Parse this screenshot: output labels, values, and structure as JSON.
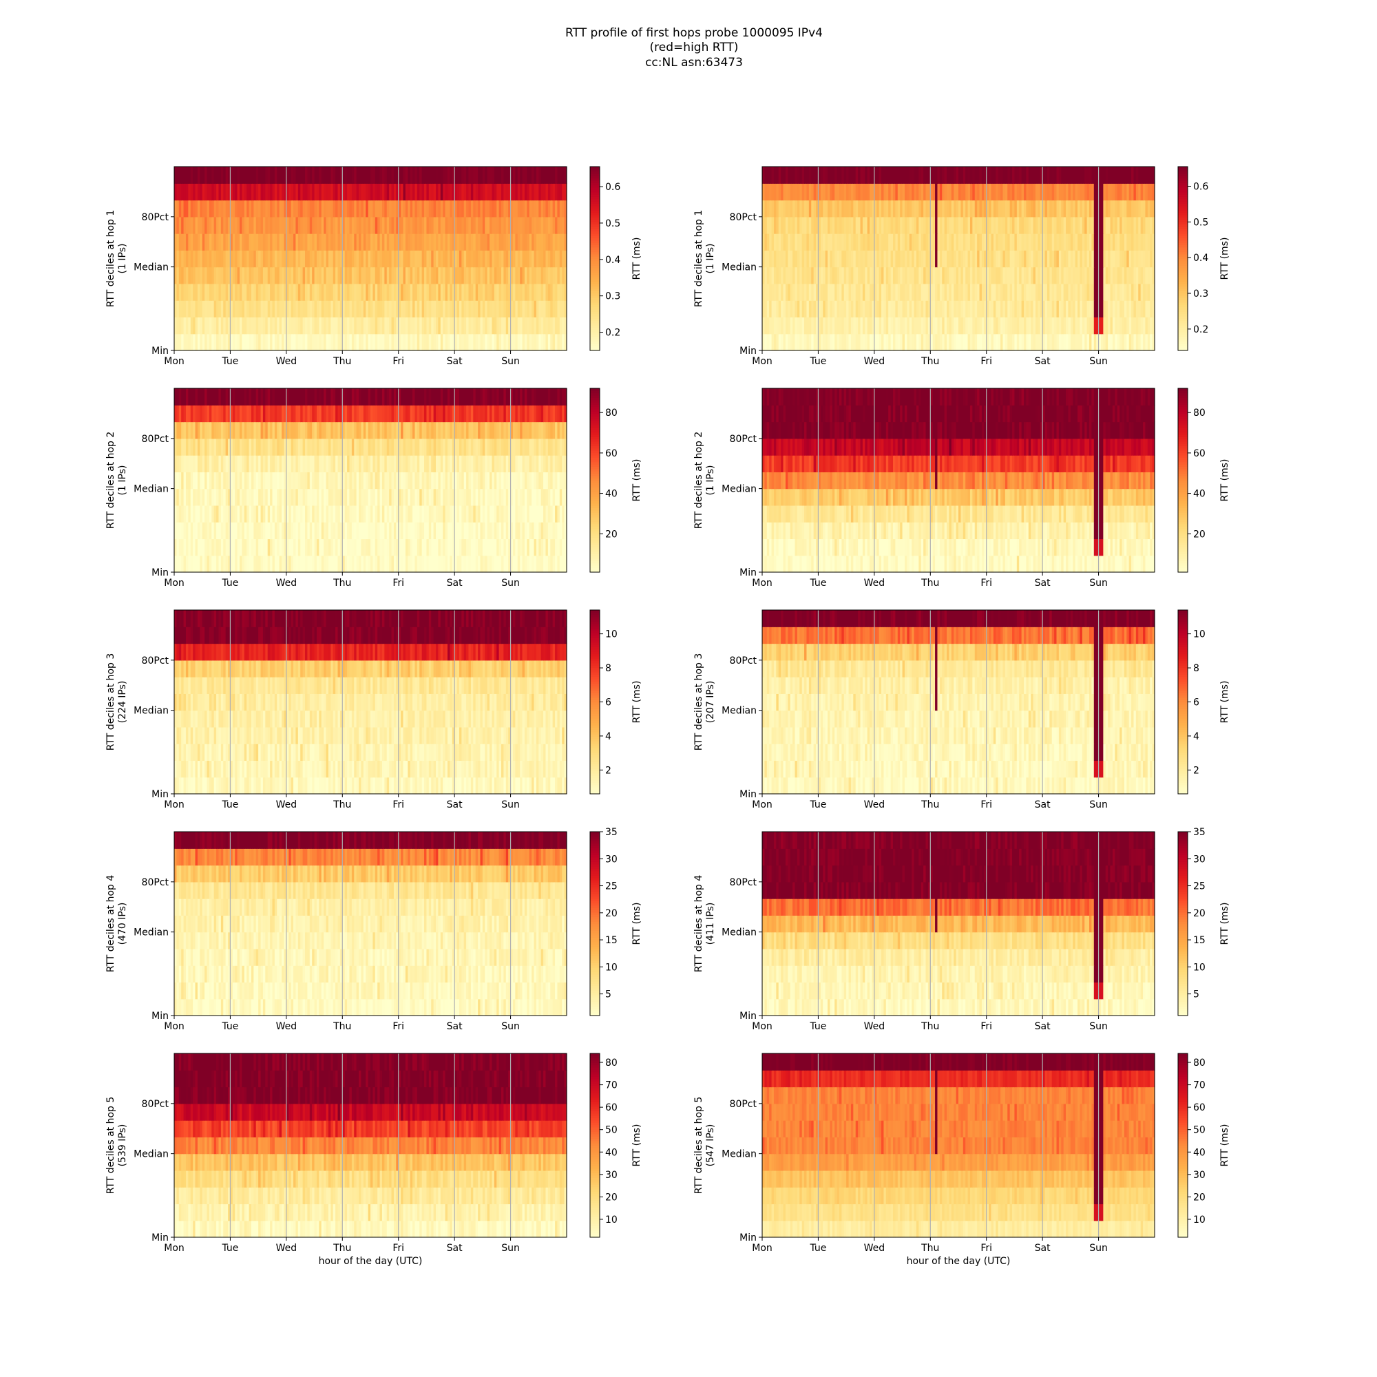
{
  "title_lines": [
    "RTT profile of first hops probe 1000095 IPv4",
    "(red=high RTT)",
    "cc:NL asn:63473"
  ],
  "colormap": {
    "name": "YlOrRd",
    "stops": [
      "#ffffcc",
      "#ffeda0",
      "#fed976",
      "#feb24c",
      "#fd8d3c",
      "#fc4e2a",
      "#e31a1c",
      "#bd0026",
      "#800026"
    ]
  },
  "chart_data": [
    {
      "type": "heatmap",
      "column": "left",
      "hop": 1,
      "ylabel_lines": [
        "RTT deciles at hop 1",
        "(1 IPs)"
      ],
      "colorbar_label": "RTT (ms)",
      "vmin": 0.15,
      "vmax": 0.655,
      "colorbar_ticks": [
        0.2,
        0.3,
        0.4,
        0.5,
        0.6
      ],
      "colorbar_tick_labels": [
        "0.2",
        "0.3",
        "0.4",
        "0.5",
        "0.6"
      ],
      "x_tick_labels": [
        "Mon",
        "Tue",
        "Wed",
        "Thu",
        "Fri",
        "Sat",
        "Sun"
      ],
      "y_tick_labels": [
        "Min",
        "Median",
        "80Pct"
      ],
      "xlabel": "",
      "decile_values": [
        0.17,
        0.21,
        0.25,
        0.28,
        0.31,
        0.33,
        0.36,
        0.38,
        0.41,
        0.56,
        0.66
      ],
      "noise": 0.05,
      "anomaly": null
    },
    {
      "type": "heatmap",
      "column": "right",
      "hop": 1,
      "ylabel_lines": [
        "RTT deciles at hop 1",
        "(1 IPs)"
      ],
      "colorbar_label": "RTT (ms)",
      "vmin": 0.14,
      "vmax": 0.655,
      "colorbar_ticks": [
        0.2,
        0.3,
        0.4,
        0.5,
        0.6
      ],
      "colorbar_tick_labels": [
        "0.2",
        "0.3",
        "0.4",
        "0.5",
        "0.6"
      ],
      "x_tick_labels": [
        "Mon",
        "Tue",
        "Wed",
        "Thu",
        "Fri",
        "Sat",
        "Sun"
      ],
      "y_tick_labels": [
        "Min",
        "Median",
        "80Pct"
      ],
      "xlabel": "",
      "decile_values": [
        0.16,
        0.19,
        0.21,
        0.22,
        0.23,
        0.24,
        0.25,
        0.26,
        0.3,
        0.4,
        0.66
      ],
      "noise": 0.05,
      "anomaly": "dip"
    },
    {
      "type": "heatmap",
      "column": "left",
      "hop": 2,
      "ylabel_lines": [
        "RTT deciles at hop 2",
        "(1 IPs)"
      ],
      "colorbar_label": "RTT (ms)",
      "vmin": 1,
      "vmax": 92,
      "colorbar_ticks": [
        20,
        40,
        60,
        80
      ],
      "colorbar_tick_labels": [
        "20",
        "40",
        "60",
        "80"
      ],
      "x_tick_labels": [
        "Mon",
        "Tue",
        "Wed",
        "Thu",
        "Fri",
        "Sat",
        "Sun"
      ],
      "y_tick_labels": [
        "Min",
        "Median",
        "80Pct"
      ],
      "xlabel": "",
      "decile_values": [
        2,
        3,
        3,
        4,
        5,
        6,
        10,
        18,
        30,
        62,
        92
      ],
      "noise": 0.06,
      "anomaly": null
    },
    {
      "type": "heatmap",
      "column": "right",
      "hop": 2,
      "ylabel_lines": [
        "RTT deciles at hop 2",
        "(1 IPs)"
      ],
      "colorbar_label": "RTT (ms)",
      "vmin": 1,
      "vmax": 92,
      "colorbar_ticks": [
        20,
        40,
        60,
        80
      ],
      "colorbar_tick_labels": [
        "20",
        "40",
        "60",
        "80"
      ],
      "x_tick_labels": [
        "Mon",
        "Tue",
        "Wed",
        "Thu",
        "Fri",
        "Sat",
        "Sun"
      ],
      "y_tick_labels": [
        "Min",
        "Median",
        "80Pct"
      ],
      "xlabel": "",
      "decile_values": [
        3,
        4,
        8,
        15,
        28,
        45,
        62,
        78,
        92,
        92,
        92
      ],
      "noise": 0.06,
      "anomaly": "dip"
    },
    {
      "type": "heatmap",
      "column": "left",
      "hop": 3,
      "ylabel_lines": [
        "RTT deciles at hop 3",
        "(224 IPs)"
      ],
      "colorbar_label": "RTT (ms)",
      "vmin": 0.6,
      "vmax": 11.4,
      "colorbar_ticks": [
        2,
        4,
        6,
        8,
        10
      ],
      "colorbar_tick_labels": [
        "2",
        "4",
        "6",
        "8",
        "10"
      ],
      "x_tick_labels": [
        "Mon",
        "Tue",
        "Wed",
        "Thu",
        "Fri",
        "Sat",
        "Sun"
      ],
      "y_tick_labels": [
        "Min",
        "Median",
        "80Pct"
      ],
      "xlabel": "",
      "decile_values": [
        1.1,
        1.3,
        1.4,
        1.6,
        1.7,
        1.9,
        2.2,
        3.5,
        8.5,
        11.4,
        11.4
      ],
      "noise": 0.06,
      "anomaly": null
    },
    {
      "type": "heatmap",
      "column": "right",
      "hop": 3,
      "ylabel_lines": [
        "RTT deciles at hop 3",
        "(207 IPs)"
      ],
      "colorbar_label": "RTT (ms)",
      "vmin": 0.6,
      "vmax": 11.4,
      "colorbar_ticks": [
        2,
        4,
        6,
        8,
        10
      ],
      "colorbar_tick_labels": [
        "2",
        "4",
        "6",
        "8",
        "10"
      ],
      "x_tick_labels": [
        "Mon",
        "Tue",
        "Wed",
        "Thu",
        "Fri",
        "Sat",
        "Sun"
      ],
      "y_tick_labels": [
        "Min",
        "Median",
        "80Pct"
      ],
      "xlabel": "",
      "decile_values": [
        1.0,
        1.1,
        1.2,
        1.3,
        1.4,
        1.5,
        1.6,
        2.2,
        3.5,
        6.5,
        11.4
      ],
      "noise": 0.06,
      "anomaly": "dip"
    },
    {
      "type": "heatmap",
      "column": "left",
      "hop": 4,
      "ylabel_lines": [
        "RTT deciles at hop 4",
        "(470 IPs)"
      ],
      "colorbar_label": "RTT (ms)",
      "vmin": 1,
      "vmax": 35,
      "colorbar_ticks": [
        5,
        10,
        15,
        20,
        25,
        30,
        35
      ],
      "colorbar_tick_labels": [
        "5",
        "10",
        "15",
        "20",
        "25",
        "30",
        "35"
      ],
      "x_tick_labels": [
        "Mon",
        "Tue",
        "Wed",
        "Thu",
        "Fri",
        "Sat",
        "Sun"
      ],
      "y_tick_labels": [
        "Min",
        "Median",
        "80Pct"
      ],
      "xlabel": "",
      "decile_values": [
        2,
        2.3,
        2.6,
        3,
        3.4,
        3.8,
        4.5,
        6.5,
        11,
        18,
        35
      ],
      "noise": 0.06,
      "anomaly": null
    },
    {
      "type": "heatmap",
      "column": "right",
      "hop": 4,
      "ylabel_lines": [
        "RTT deciles at hop 4",
        "(411 IPs)"
      ],
      "colorbar_label": "RTT (ms)",
      "vmin": 1,
      "vmax": 35,
      "colorbar_ticks": [
        5,
        10,
        15,
        20,
        25,
        30,
        35
      ],
      "colorbar_tick_labels": [
        "5",
        "10",
        "15",
        "20",
        "25",
        "30",
        "35"
      ],
      "x_tick_labels": [
        "Mon",
        "Tue",
        "Wed",
        "Thu",
        "Fri",
        "Sat",
        "Sun"
      ],
      "y_tick_labels": [
        "Min",
        "Median",
        "80Pct"
      ],
      "xlabel": "",
      "decile_values": [
        2.5,
        3,
        3.5,
        5,
        8,
        13,
        20,
        35,
        35,
        35,
        35
      ],
      "noise": 0.06,
      "anomaly": "dip"
    },
    {
      "type": "heatmap",
      "column": "left",
      "hop": 5,
      "ylabel_lines": [
        "RTT deciles at hop 5",
        "(539 IPs)"
      ],
      "colorbar_label": "RTT (ms)",
      "vmin": 2,
      "vmax": 84,
      "colorbar_ticks": [
        10,
        20,
        30,
        40,
        50,
        60,
        70,
        80
      ],
      "colorbar_tick_labels": [
        "10",
        "20",
        "30",
        "40",
        "50",
        "60",
        "70",
        "80"
      ],
      "x_tick_labels": [
        "Mon",
        "Tue",
        "Wed",
        "Thu",
        "Fri",
        "Sat",
        "Sun"
      ],
      "y_tick_labels": [
        "Min",
        "Median",
        "80Pct"
      ],
      "xlabel": "hour of the day (UTC)",
      "decile_values": [
        5,
        9,
        13,
        19,
        28,
        43,
        55,
        70,
        84,
        84,
        84
      ],
      "noise": 0.06,
      "anomaly": null
    },
    {
      "type": "heatmap",
      "column": "right",
      "hop": 5,
      "ylabel_lines": [
        "RTT deciles at hop 5",
        "(547 IPs)"
      ],
      "colorbar_label": "RTT (ms)",
      "vmin": 2,
      "vmax": 84,
      "colorbar_ticks": [
        10,
        20,
        30,
        40,
        50,
        60,
        70,
        80
      ],
      "colorbar_tick_labels": [
        "10",
        "20",
        "30",
        "40",
        "50",
        "60",
        "70",
        "80"
      ],
      "x_tick_labels": [
        "Mon",
        "Tue",
        "Wed",
        "Thu",
        "Fri",
        "Sat",
        "Sun"
      ],
      "y_tick_labels": [
        "Min",
        "Median",
        "80Pct"
      ],
      "xlabel": "hour of the day (UTC)",
      "decile_values": [
        12,
        18,
        22,
        28,
        38,
        44,
        44,
        44,
        44,
        60,
        84
      ],
      "noise": 0.04,
      "anomaly": "dip"
    }
  ]
}
